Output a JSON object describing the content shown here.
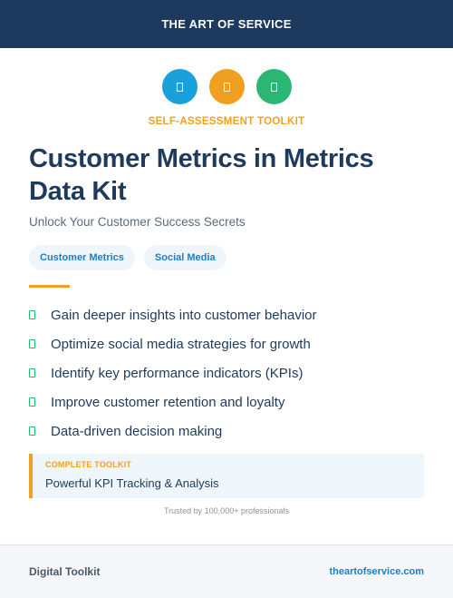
{
  "header": {
    "brand": "THE ART OF SERVICE"
  },
  "icons": [
    {
      "name": "document-icon",
      "color": "#1aa0dd"
    },
    {
      "name": "document-icon",
      "color": "#f0a020"
    },
    {
      "name": "document-icon",
      "color": "#2bb673"
    }
  ],
  "kicker": "SELF-ASSESSMENT TOOLKIT",
  "title": "Customer Metrics in Metrics Data Kit",
  "subtitle": "Unlock Your Customer Success Secrets",
  "tags": [
    "Customer Metrics",
    "Social Media"
  ],
  "features": [
    "Gain deeper insights into customer behavior",
    "Optimize social media strategies for growth",
    "Identify key performance indicators (KPIs)",
    "Improve customer retention and loyalty",
    "Data-driven decision making"
  ],
  "callout": {
    "label": "COMPLETE TOOLKIT",
    "value": "Powerful KPI Tracking & Analysis"
  },
  "trust": "Trusted by 100,000+ professionals",
  "footer": {
    "left": "Digital Toolkit",
    "right": "theartofservice.com"
  }
}
